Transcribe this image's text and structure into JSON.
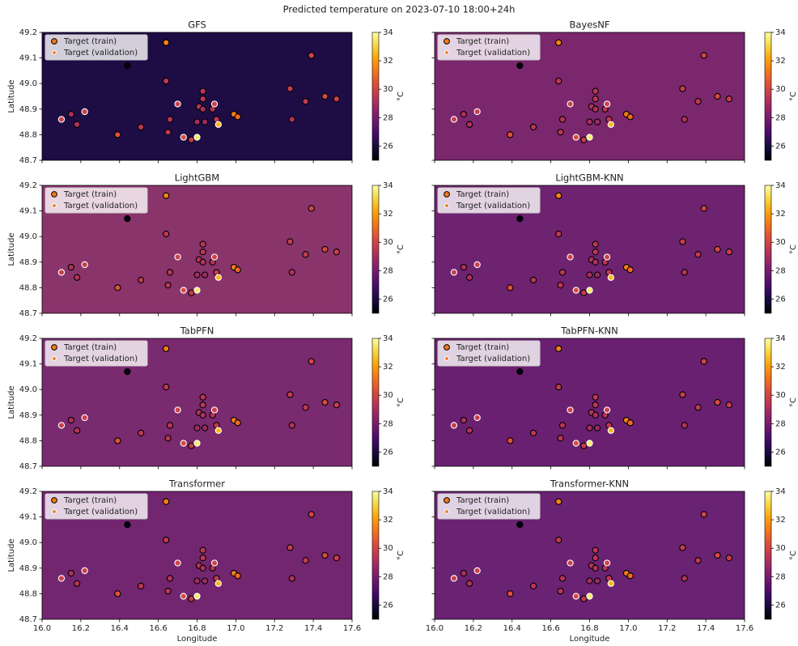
{
  "title": "Predicted temperature on 2023-07-10 18:00+24h",
  "series": [
    {
      "name": "Target (train)",
      "edgecolor": "#000000",
      "x": [
        16.64,
        16.44,
        17.39,
        17.28,
        16.64,
        16.83,
        16.83,
        16.81,
        16.83,
        16.88,
        16.66,
        16.9,
        16.84,
        16.8,
        16.99,
        17.01,
        17.29,
        17.36,
        17.46,
        17.52,
        16.65,
        16.77,
        16.39,
        16.51,
        16.15,
        16.18
      ],
      "y": [
        49.16,
        49.07,
        49.11,
        48.98,
        49.01,
        48.97,
        48.94,
        48.91,
        48.9,
        48.9,
        48.86,
        48.86,
        48.85,
        48.85,
        48.88,
        48.87,
        48.86,
        48.93,
        48.95,
        48.94,
        48.81,
        48.78,
        48.8,
        48.83,
        48.88,
        48.84
      ],
      "values": [
        31.5,
        25.2,
        30.0,
        29.8,
        29.6,
        29.5,
        29.5,
        29.3,
        29.2,
        29.3,
        29.4,
        29.6,
        28.8,
        29.0,
        31.4,
        31.0,
        29.3,
        29.6,
        30.2,
        29.8,
        29.5,
        29.7,
        30.5,
        29.5,
        29.2,
        29.3
      ]
    },
    {
      "name": "Target (validation)",
      "edgecolor": "#ffffff",
      "x": [
        16.1,
        16.22,
        16.7,
        16.89,
        16.91,
        16.73,
        16.8
      ],
      "y": [
        48.86,
        48.89,
        48.92,
        48.92,
        48.84,
        48.79,
        48.79
      ],
      "values": [
        29.8,
        29.8,
        29.9,
        29.9,
        32.5,
        30.2,
        33.5
      ]
    }
  ],
  "chart_data": [
    {
      "type": "heatmap",
      "title": "GFS",
      "background": "#1e0c45",
      "colormap": "inferno",
      "xlim": [
        16,
        17.6
      ],
      "ylim": [
        48.7,
        49.2
      ],
      "xticks": [
        16,
        16.2,
        16.4,
        16.6,
        16.8,
        17,
        17.2,
        17.4,
        17.6
      ],
      "yticks": [
        48.7,
        48.8,
        48.9,
        {
          "value": 49,
          "label": "49.0"
        },
        49.1,
        49.2
      ],
      "ylabel": "Latitude",
      "clim": [
        25,
        34
      ],
      "cticks": [
        26,
        28,
        30,
        32,
        34
      ],
      "clabel": "°C"
    },
    {
      "type": "heatmap",
      "title": "BayesNF",
      "background": "#7a276e",
      "colormap": "inferno",
      "xlim": [
        16,
        17.6
      ],
      "ylim": [
        48.7,
        49.2
      ],
      "xticks": [
        16,
        16.2,
        16.4,
        16.6,
        16.8,
        17,
        17.2,
        17.4,
        17.6
      ],
      "yticks": [
        48.7,
        48.8,
        48.9,
        49,
        49.1,
        49.2
      ],
      "clim": [
        25,
        34
      ],
      "cticks": [
        26,
        28,
        30,
        32,
        34
      ],
      "clabel": "°C"
    },
    {
      "type": "heatmap",
      "title": "LightGBM",
      "background": "#8a346c",
      "colormap": "inferno",
      "xlim": [
        16,
        17.6
      ],
      "ylim": [
        48.7,
        49.2
      ],
      "xticks": [
        16,
        16.2,
        16.4,
        16.6,
        16.8,
        17,
        17.2,
        17.4,
        17.6
      ],
      "yticks": [
        48.7,
        48.8,
        48.9,
        {
          "value": 49,
          "label": "49.0"
        },
        49.1,
        49.2
      ],
      "ylabel": "Latitude",
      "clim": [
        25,
        34
      ],
      "cticks": [
        26,
        28,
        30,
        32,
        34
      ],
      "clabel": "°C"
    },
    {
      "type": "heatmap",
      "title": "LightGBM-KNN",
      "background": "#6e2370",
      "colormap": "inferno",
      "xlim": [
        16,
        17.6
      ],
      "ylim": [
        48.7,
        49.2
      ],
      "xticks": [
        16,
        16.2,
        16.4,
        16.6,
        16.8,
        17,
        17.2,
        17.4,
        17.6
      ],
      "yticks": [
        48.7,
        48.8,
        48.9,
        49,
        49.1,
        49.2
      ],
      "clim": [
        25,
        34
      ],
      "cticks": [
        26,
        28,
        30,
        32,
        34
      ],
      "clabel": "°C"
    },
    {
      "type": "heatmap",
      "title": "TabPFN",
      "background": "#7a2a6f",
      "colormap": "inferno",
      "xlim": [
        16,
        17.6
      ],
      "ylim": [
        48.7,
        49.2
      ],
      "xticks": [
        16,
        16.2,
        16.4,
        16.6,
        16.8,
        17,
        17.2,
        17.4,
        17.6
      ],
      "yticks": [
        48.7,
        48.8,
        48.9,
        {
          "value": 49,
          "label": "49.0"
        },
        49.1,
        49.2
      ],
      "ylabel": "Latitude",
      "clim": [
        25,
        34
      ],
      "cticks": [
        26,
        28,
        30,
        32,
        34
      ],
      "clabel": "°C"
    },
    {
      "type": "heatmap",
      "title": "TabPFN-KNN",
      "background": "#6a2070",
      "colormap": "inferno",
      "xlim": [
        16,
        17.6
      ],
      "ylim": [
        48.7,
        49.2
      ],
      "xticks": [
        16,
        16.2,
        16.4,
        16.6,
        16.8,
        17,
        17.2,
        17.4,
        17.6
      ],
      "yticks": [
        48.7,
        48.8,
        48.9,
        49,
        49.1,
        49.2
      ],
      "clim": [
        25,
        34
      ],
      "cticks": [
        26,
        28,
        30,
        32,
        34
      ],
      "clabel": "°C"
    },
    {
      "type": "heatmap",
      "title": "Transformer",
      "background": "#722670",
      "colormap": "inferno",
      "xlim": [
        16,
        17.6
      ],
      "ylim": [
        48.7,
        49.2
      ],
      "xticks": [
        {
          "value": 16,
          "label": "16.0"
        },
        16.2,
        16.4,
        16.6,
        16.8,
        {
          "value": 17,
          "label": "17.0"
        },
        17.2,
        17.4,
        17.6
      ],
      "yticks": [
        48.7,
        48.8,
        48.9,
        {
          "value": 49,
          "label": "49.0"
        },
        49.1,
        49.2
      ],
      "ylabel": "Latitude",
      "xlabel": "Longitude",
      "clim": [
        25,
        34
      ],
      "cticks": [
        26,
        28,
        30,
        32,
        34
      ],
      "clabel": "°C"
    },
    {
      "type": "heatmap",
      "title": "Transformer-KNN",
      "background": "#6a2272",
      "colormap": "inferno",
      "xlim": [
        16,
        17.6
      ],
      "ylim": [
        48.7,
        49.2
      ],
      "xticks": [
        {
          "value": 16,
          "label": "16.0"
        },
        16.2,
        16.4,
        16.6,
        16.8,
        {
          "value": 17,
          "label": "17.0"
        },
        17.2,
        17.4,
        17.6
      ],
      "yticks": [
        48.7,
        48.8,
        48.9,
        49,
        49.1,
        49.2
      ],
      "xlabel": "Longitude",
      "clim": [
        25,
        34
      ],
      "cticks": [
        26,
        28,
        30,
        32,
        34
      ],
      "clabel": "°C"
    }
  ]
}
